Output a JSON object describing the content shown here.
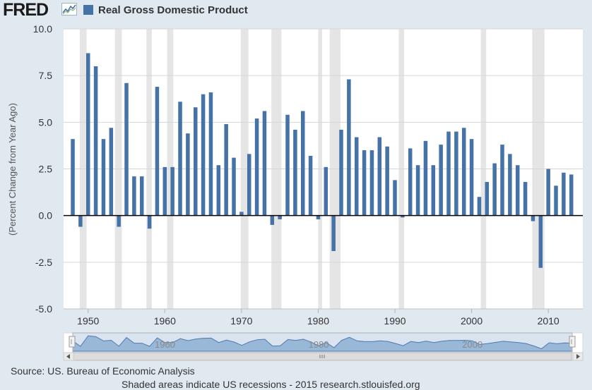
{
  "header": {
    "logo_text": "FRED",
    "logo_icon": "fred-graph-icon",
    "legend_label": "Real Gross Domestic Product",
    "series_color": "#4572a7"
  },
  "footer": {
    "source": "Source: US. Bureau of Economic Analysis",
    "recession_note": "Shaded areas indicate US recessions - 2015 research.stlouisfed.org"
  },
  "navigator": {
    "tick_labels": [
      "1960",
      "1980",
      "2000"
    ],
    "left_arrow_icon": "arrow-left-icon",
    "right_arrow_icon": "arrow-right-icon",
    "grip_icon": "grip-icon"
  },
  "chart_data": {
    "type": "bar",
    "ylabel": "(Percent Change from Year Ago)",
    "ylim": [
      -5,
      10
    ],
    "yticks": [
      10.0,
      7.5,
      5.0,
      2.5,
      0.0,
      -2.5,
      -5.0
    ],
    "ytick_labels": [
      "10.0",
      "7.5",
      "5.0",
      "2.5",
      "0.0",
      "-2.5",
      "-5.0"
    ],
    "xlim": [
      1946.8,
      2014.5
    ],
    "xticks": [
      1950,
      1960,
      1970,
      1980,
      1990,
      2000,
      2010
    ],
    "xtick_labels": [
      "1950",
      "1960",
      "1970",
      "1980",
      "1990",
      "2000",
      "2010"
    ],
    "grid": true,
    "legend_position": "top-left",
    "recessions": [
      [
        1948.9,
        1949.8
      ],
      [
        1953.5,
        1954.4
      ],
      [
        1957.6,
        1958.3
      ],
      [
        1960.3,
        1961.1
      ],
      [
        1969.9,
        1970.9
      ],
      [
        1973.9,
        1975.2
      ],
      [
        1980.0,
        1980.5
      ],
      [
        1981.5,
        1982.9
      ],
      [
        1990.5,
        1991.2
      ],
      [
        2001.2,
        2001.9
      ],
      [
        2007.9,
        2009.5
      ]
    ],
    "series": [
      {
        "x": [
          1948,
          1949,
          1950,
          1951,
          1952,
          1953,
          1954,
          1955,
          1956,
          1957,
          1958,
          1959,
          1960,
          1961,
          1962,
          1963,
          1964,
          1965,
          1966,
          1967,
          1968,
          1969,
          1970,
          1971,
          1972,
          1973,
          1974,
          1975,
          1976,
          1977,
          1978,
          1979,
          1980,
          1981,
          1982,
          1983,
          1984,
          1985,
          1986,
          1987,
          1988,
          1989,
          1990,
          1991,
          1992,
          1993,
          1994,
          1995,
          1996,
          1997,
          1998,
          1999,
          2000,
          2001,
          2002,
          2003,
          2004,
          2005,
          2006,
          2007,
          2008,
          2009,
          2010,
          2011,
          2012,
          2013
        ],
        "values": [
          4.1,
          -0.6,
          8.7,
          8.0,
          4.1,
          4.7,
          -0.6,
          7.1,
          2.1,
          2.1,
          -0.7,
          6.9,
          2.6,
          2.6,
          6.1,
          4.4,
          5.8,
          6.5,
          6.6,
          2.7,
          4.9,
          3.1,
          0.2,
          3.3,
          5.2,
          5.6,
          -0.5,
          -0.2,
          5.4,
          4.6,
          5.6,
          3.2,
          -0.2,
          2.6,
          -1.9,
          4.6,
          7.3,
          4.2,
          3.5,
          3.5,
          4.2,
          3.7,
          1.9,
          -0.1,
          3.6,
          2.7,
          4.0,
          2.7,
          3.8,
          4.5,
          4.5,
          4.7,
          4.1,
          1.0,
          1.8,
          2.8,
          3.8,
          3.3,
          2.7,
          1.8,
          -0.3,
          -2.8,
          2.5,
          1.6,
          2.3,
          2.2
        ]
      }
    ]
  }
}
